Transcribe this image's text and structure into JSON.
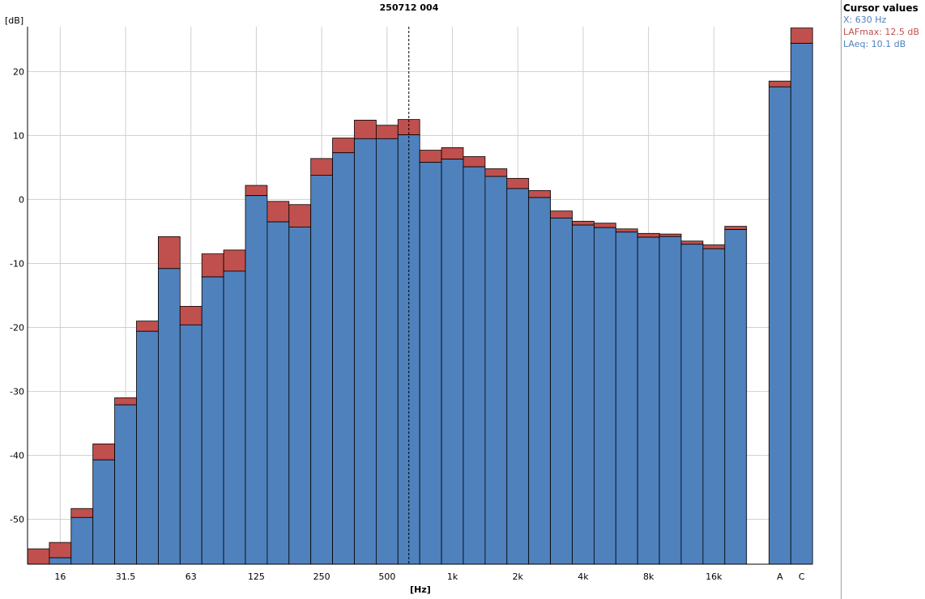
{
  "chart_data": {
    "type": "bar",
    "title": "250712 004",
    "xlabel": "[Hz]",
    "ylabel": "[dB]",
    "ylim": [
      -57,
      27
    ],
    "yticks": [
      -50,
      -40,
      -30,
      -20,
      -10,
      0,
      10,
      20
    ],
    "grid": true,
    "bands": [
      "12.5",
      "16",
      "20",
      "25",
      "31.5",
      "40",
      "50",
      "63",
      "80",
      "100",
      "125",
      "160",
      "200",
      "250",
      "315",
      "400",
      "500",
      "630",
      "800",
      "1k",
      "1.25k",
      "1.6k",
      "2k",
      "2.5k",
      "3.15k",
      "4k",
      "5k",
      "6.3k",
      "8k",
      "10k",
      "12.5k",
      "16k",
      "20k"
    ],
    "band_tick_labels": [
      "16",
      "31.5",
      "63",
      "125",
      "250",
      "500",
      "1k",
      "2k",
      "4k",
      "8k",
      "16k"
    ],
    "broadband_labels": [
      "A",
      "C"
    ],
    "cursor_band": "630",
    "series": [
      {
        "name": "LAFmax",
        "color": "#c0504d",
        "values": [
          -54.6,
          -53.6,
          -48.3,
          -38.2,
          -31.0,
          -19.0,
          -5.8,
          -16.7,
          -8.5,
          -7.9,
          2.2,
          -0.3,
          -0.8,
          6.4,
          9.6,
          12.4,
          11.6,
          12.5,
          7.7,
          8.1,
          6.7,
          4.8,
          3.3,
          1.4,
          -1.8,
          -3.4,
          -3.7,
          -4.6,
          -5.3,
          -5.4,
          -6.5,
          -7.1,
          -4.2
        ],
        "broadband": [
          18.5,
          26.8
        ]
      },
      {
        "name": "LAeq",
        "color": "#4f81bd",
        "values": [
          -57.0,
          -56.0,
          -49.7,
          -40.7,
          -32.1,
          -20.6,
          -10.8,
          -19.6,
          -12.1,
          -11.2,
          0.6,
          -3.5,
          -4.3,
          3.8,
          7.3,
          9.5,
          9.5,
          10.1,
          5.8,
          6.3,
          5.1,
          3.6,
          1.7,
          0.3,
          -2.9,
          -4.0,
          -4.4,
          -5.1,
          -5.9,
          -5.8,
          -7.0,
          -7.7,
          -4.7
        ],
        "broadband": [
          17.6,
          24.4
        ]
      }
    ]
  },
  "cursor_panel": {
    "title": "Cursor values",
    "x_text": "X: 630 Hz",
    "max_text": "LAFmax: 12.5 dB",
    "eq_text": "LAeq: 10.1 dB"
  }
}
